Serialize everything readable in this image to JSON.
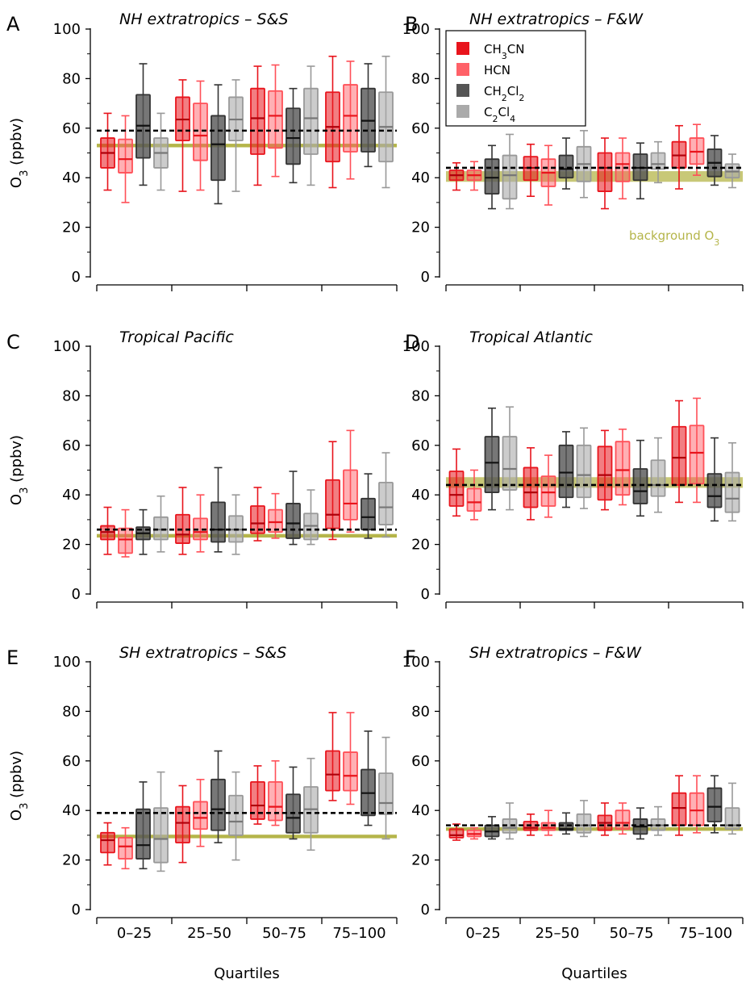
{
  "colors": {
    "CH3CN": "#e8141c",
    "HCN": "#ff5058",
    "CH2Cl2": "#555555",
    "C2Cl4": "#aaaaaa",
    "background": "#b5b54a",
    "threshold": "#000000"
  },
  "legend": {
    "panel": "B",
    "items": [
      {
        "key": "CH3CN",
        "label": "CH",
        "sub": "3",
        "rest": "CN"
      },
      {
        "key": "HCN",
        "label": "HCN",
        "sub": "",
        "rest": ""
      },
      {
        "key": "CH2Cl2",
        "label": "CH",
        "sub": "2",
        "rest": "Cl",
        "sub2": "2"
      },
      {
        "key": "C2Cl4",
        "label": "C",
        "sub": "2",
        "rest": "Cl",
        "sub2": "4"
      }
    ]
  },
  "background_label": {
    "panel": "B",
    "text": "background O",
    "sub": "3"
  },
  "axis": {
    "ylabel": "O",
    "ylabel_sub": "3",
    "ylabel_rest": " (ppbv)",
    "xlabel": "Quartiles",
    "yticks": [
      0,
      20,
      40,
      60,
      80,
      100
    ],
    "categories": [
      "0–25",
      "25–50",
      "50–75",
      "75–100"
    ]
  },
  "chart_data": [
    {
      "panel": "A",
      "title": "NH extratropics – S&S",
      "type": "box",
      "ylim": [
        0,
        100
      ],
      "background": 53,
      "background_band": 1,
      "threshold": 59,
      "series_order": [
        "CH3CN",
        "HCN",
        "CH2Cl2",
        "C2Cl4"
      ],
      "boxes": [
        [
          [
            35,
            44,
            50,
            56,
            66
          ],
          [
            30,
            42,
            47.5,
            55.5,
            65
          ],
          [
            37,
            48,
            61,
            73.5,
            86
          ],
          [
            35,
            44,
            50,
            56,
            66
          ]
        ],
        [
          [
            34.5,
            55,
            63.5,
            72.5,
            79.5
          ],
          [
            35,
            47,
            57,
            70,
            79
          ],
          [
            29.5,
            39,
            53.5,
            65,
            77.5
          ],
          [
            34.5,
            55,
            63.5,
            72.5,
            79.5
          ]
        ],
        [
          [
            37,
            49.5,
            64,
            76,
            85
          ],
          [
            40.5,
            52,
            65,
            75,
            85.5
          ],
          [
            38,
            45.5,
            56,
            68,
            76
          ],
          [
            37,
            49.5,
            64,
            76,
            85
          ]
        ],
        [
          [
            36,
            46.5,
            60.5,
            74.5,
            89
          ],
          [
            39.5,
            50.5,
            65,
            77.5,
            87
          ],
          [
            44.5,
            50.5,
            63,
            76,
            86
          ],
          [
            36,
            46.5,
            60.5,
            74.5,
            89
          ]
        ]
      ]
    },
    {
      "panel": "B",
      "title": "NH extratropics – F&W",
      "type": "box",
      "ylim": [
        0,
        100
      ],
      "background": 40.5,
      "background_band": 3,
      "threshold": 44,
      "series_order": [
        "CH3CN",
        "HCN",
        "CH2Cl2",
        "C2Cl4"
      ],
      "boxes": [
        [
          [
            35,
            39,
            41,
            43,
            46
          ],
          [
            35,
            39,
            41,
            43,
            46.5
          ],
          [
            27.5,
            33.5,
            40,
            47.5,
            53
          ],
          [
            27.5,
            31.5,
            41,
            49,
            57.5
          ]
        ],
        [
          [
            32.5,
            39,
            44,
            48.5,
            53.5
          ],
          [
            29,
            36.5,
            42,
            47.5,
            53
          ],
          [
            35.5,
            40,
            43.5,
            49,
            56
          ],
          [
            32,
            38.5,
            45.5,
            52.5,
            59
          ]
        ],
        [
          [
            27.5,
            34.5,
            44,
            50,
            56
          ],
          [
            31.5,
            38.5,
            45.5,
            50,
            56
          ],
          [
            31.5,
            39,
            44,
            49.5,
            54
          ],
          [
            38,
            43.5,
            45.5,
            50,
            54.5
          ]
        ],
        [
          [
            35.5,
            44,
            49,
            54.5,
            61
          ],
          [
            41,
            45.5,
            50.5,
            56,
            61.5
          ],
          [
            37,
            40.5,
            46,
            51.5,
            57
          ],
          [
            36,
            40,
            42.5,
            45.5,
            49.5
          ]
        ]
      ]
    },
    {
      "panel": "C",
      "title": "Tropical Pacific",
      "type": "box",
      "ylim": [
        0,
        100
      ],
      "background": 23.5,
      "background_band": 1,
      "threshold": 26,
      "series_order": [
        "CH3CN",
        "HCN",
        "CH2Cl2",
        "C2Cl4"
      ],
      "boxes": [
        [
          [
            16,
            22,
            25,
            27.5,
            35
          ],
          [
            15,
            16.5,
            22,
            26.5,
            34
          ],
          [
            16,
            22,
            24.5,
            27,
            34
          ],
          [
            17,
            22,
            26,
            31,
            39.5
          ]
        ],
        [
          [
            16,
            20.5,
            24,
            32,
            43
          ],
          [
            17,
            22,
            25,
            30.5,
            40
          ],
          [
            17,
            21,
            26,
            37,
            51
          ],
          [
            16,
            21,
            26,
            31.5,
            40
          ]
        ],
        [
          [
            21.5,
            24.5,
            28.5,
            35.5,
            43
          ],
          [
            22.5,
            25,
            29,
            34,
            40.5
          ],
          [
            20,
            22.5,
            28.5,
            36.5,
            49.5
          ],
          [
            20,
            22,
            27.5,
            32.5,
            42
          ]
        ],
        [
          [
            22,
            26.5,
            32,
            46,
            61.5
          ],
          [
            25,
            30,
            36.5,
            50,
            66
          ],
          [
            22.5,
            26,
            31,
            38.5,
            48.5
          ],
          [
            23,
            28,
            35,
            45,
            57
          ]
        ]
      ]
    },
    {
      "panel": "D",
      "title": "Tropical Atlantic",
      "type": "box",
      "ylim": [
        0,
        100
      ],
      "background": 45,
      "background_band": 3,
      "threshold": 44,
      "series_order": [
        "CH3CN",
        "HCN",
        "CH2Cl2",
        "C2Cl4"
      ],
      "boxes": [
        [
          [
            31.5,
            35.5,
            40,
            49.5,
            58.5
          ],
          [
            30,
            33.5,
            37,
            42.5,
            50
          ],
          [
            34,
            41,
            53,
            63.5,
            75
          ],
          [
            34,
            42,
            50.5,
            63.5,
            75.5
          ]
        ],
        [
          [
            30,
            35,
            41,
            51,
            59
          ],
          [
            31,
            35.5,
            41,
            47.5,
            56
          ],
          [
            35,
            39,
            49,
            60,
            65.5
          ],
          [
            34.5,
            39,
            48,
            60,
            67
          ]
        ],
        [
          [
            34,
            38,
            48,
            59.5,
            66
          ],
          [
            36,
            40,
            50,
            61.5,
            66.5
          ],
          [
            31.5,
            36.5,
            41.5,
            50.5,
            62
          ],
          [
            33,
            39.5,
            44,
            54,
            63
          ]
        ],
        [
          [
            37,
            44,
            55,
            67.5,
            78
          ],
          [
            37,
            44.5,
            57,
            68,
            79
          ],
          [
            29.5,
            35,
            39.5,
            48.5,
            63
          ],
          [
            29.5,
            33,
            38.5,
            49,
            61
          ]
        ]
      ]
    },
    {
      "panel": "E",
      "title": "SH extratropics – S&S",
      "type": "box",
      "ylim": [
        0,
        100
      ],
      "background": 29.5,
      "background_band": 1,
      "threshold": 39,
      "series_order": [
        "CH3CN",
        "HCN",
        "CH2Cl2",
        "C2Cl4"
      ],
      "boxes": [
        [
          [
            18,
            23,
            28,
            31,
            35
          ],
          [
            16.5,
            20.5,
            25.5,
            29,
            33
          ],
          [
            16.5,
            20.5,
            26,
            40.5,
            51.5
          ],
          [
            15.5,
            19,
            28.5,
            41,
            55.5
          ]
        ],
        [
          [
            19,
            27,
            35,
            41.5,
            50
          ],
          [
            25.5,
            32.5,
            37,
            43.5,
            52.5
          ],
          [
            27,
            32,
            40.5,
            52.5,
            64
          ],
          [
            20,
            30,
            35.5,
            46,
            55.5
          ]
        ],
        [
          [
            34.5,
            36.5,
            42,
            51.5,
            58
          ],
          [
            34,
            36,
            41.5,
            51.5,
            60
          ],
          [
            28.5,
            31,
            37,
            46.5,
            57.5
          ],
          [
            24,
            31,
            40.5,
            49.5,
            61
          ]
        ],
        [
          [
            44,
            48,
            54.5,
            64,
            79.5
          ],
          [
            42.5,
            48,
            54,
            63.5,
            79.5
          ],
          [
            34,
            38,
            47,
            56.5,
            72
          ],
          [
            28.5,
            38.5,
            43,
            55,
            69.5
          ]
        ]
      ]
    },
    {
      "panel": "F",
      "title": "SH extratropics – F&W",
      "type": "box",
      "ylim": [
        0,
        100
      ],
      "background": 32.5,
      "background_band": 1,
      "threshold": 34,
      "series_order": [
        "CH3CN",
        "HCN",
        "CH2Cl2",
        "C2Cl4"
      ],
      "boxes": [
        [
          [
            28,
            29,
            30,
            32.5,
            34.5
          ],
          [
            28.5,
            29.5,
            30.5,
            32,
            33
          ],
          [
            28.5,
            29.5,
            31.5,
            34,
            37.5
          ],
          [
            28.5,
            31,
            33,
            36.5,
            43
          ]
        ],
        [
          [
            30,
            32,
            33,
            35.5,
            38.5
          ],
          [
            30,
            32,
            33,
            35,
            40
          ],
          [
            30.5,
            32,
            32.5,
            35,
            39
          ],
          [
            29.5,
            31,
            34,
            38.5,
            44
          ]
        ],
        [
          [
            30,
            32,
            35,
            38,
            43
          ],
          [
            30.5,
            32.5,
            35,
            40,
            43
          ],
          [
            28.5,
            30.5,
            33.5,
            36.5,
            41
          ],
          [
            30,
            32,
            34,
            36.5,
            41.5
          ]
        ],
        [
          [
            30,
            34,
            41,
            47,
            54
          ],
          [
            31,
            34,
            40,
            47,
            54
          ],
          [
            31,
            35.5,
            41.5,
            49,
            54
          ],
          [
            30.5,
            32.5,
            34,
            41,
            51
          ]
        ]
      ]
    }
  ]
}
